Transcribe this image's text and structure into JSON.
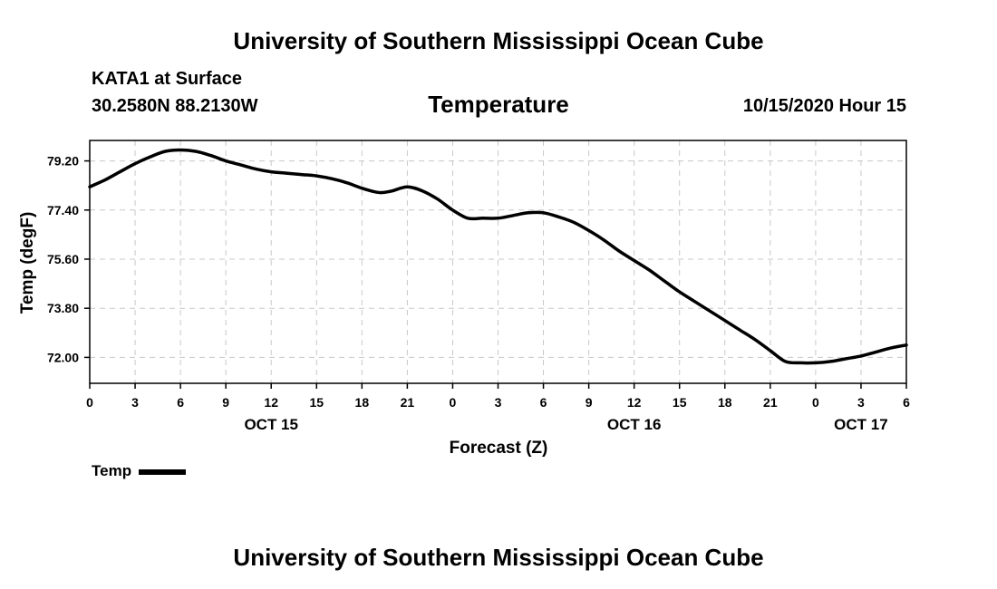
{
  "header": {
    "title": "University of Southern Mississippi Ocean Cube",
    "station": "KATA1 at Surface",
    "coords": "30.2580N 88.2130W",
    "parameter": "Temperature",
    "datetime": "10/15/2020 Hour 15"
  },
  "footer": {
    "title": "University of Southern Mississippi Ocean Cube"
  },
  "legend": {
    "label": "Temp"
  },
  "chart_data": {
    "type": "line",
    "title": "Temperature",
    "xlabel": "Forecast (Z)",
    "ylabel": "Temp (degF)",
    "xlim": [
      0,
      54
    ],
    "ylim": [
      71.05,
      79.95
    ],
    "yticks": [
      "79.20",
      "77.40",
      "75.60",
      "73.80",
      "72.00"
    ],
    "xtick_labels": [
      "0",
      "3",
      "6",
      "9",
      "12",
      "15",
      "18",
      "21",
      "0",
      "3",
      "6",
      "9",
      "12",
      "15",
      "18",
      "21",
      "0",
      "3",
      "6"
    ],
    "date_labels": [
      {
        "hour": 12,
        "label": "OCT 15"
      },
      {
        "hour": 36,
        "label": "OCT 16"
      },
      {
        "hour": 51,
        "label": "OCT 17"
      }
    ],
    "grid": true,
    "series": [
      {
        "name": "Temp",
        "color": "#000000",
        "x": [
          0,
          1,
          2,
          3,
          4,
          5,
          6,
          7,
          8,
          9,
          10,
          11,
          12,
          13,
          14,
          15,
          16,
          17,
          18,
          19,
          19.5,
          20,
          21,
          22,
          23,
          24,
          25,
          26,
          27,
          28,
          29,
          30,
          31,
          32,
          33,
          34,
          35,
          36,
          37,
          38,
          39,
          40,
          41,
          42,
          43,
          44,
          45,
          46,
          47,
          48,
          49,
          50,
          51,
          52,
          53,
          54
        ],
        "values": [
          78.25,
          78.5,
          78.8,
          79.1,
          79.35,
          79.55,
          79.6,
          79.55,
          79.4,
          79.2,
          79.05,
          78.9,
          78.8,
          78.75,
          78.7,
          78.65,
          78.55,
          78.4,
          78.2,
          78.05,
          78.05,
          78.1,
          78.25,
          78.1,
          77.8,
          77.4,
          77.1,
          77.1,
          77.1,
          77.2,
          77.3,
          77.3,
          77.15,
          76.95,
          76.65,
          76.3,
          75.9,
          75.55,
          75.2,
          74.8,
          74.4,
          74.05,
          73.7,
          73.35,
          73.0,
          72.65,
          72.25,
          71.85,
          71.8,
          71.8,
          71.85,
          71.95,
          72.05,
          72.2,
          72.35,
          72.45
        ]
      }
    ]
  }
}
